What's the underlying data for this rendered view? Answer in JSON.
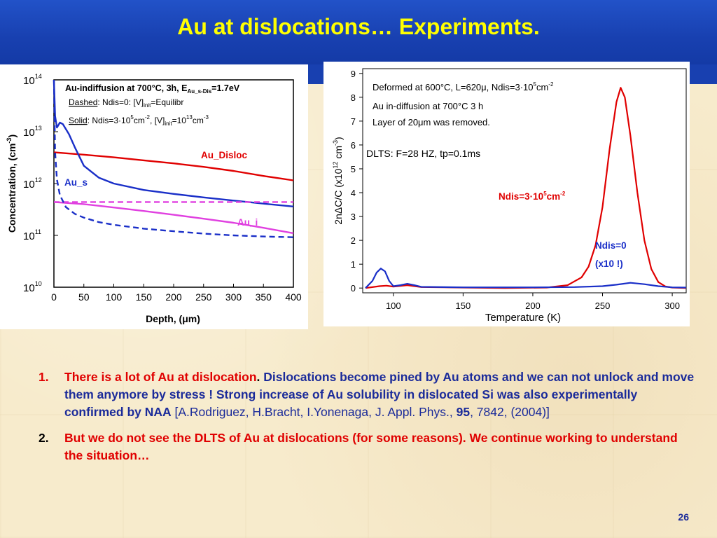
{
  "slide": {
    "title": "Au at dislocations… Experiments.",
    "page_number": "26"
  },
  "left_chart": {
    "annotation_main": "Au-indiffusion at 700°C, 3h, E",
    "annotation_main_sub": "Au_s-Dis",
    "annotation_main_end": "=1.7eV",
    "dashed_label": "Dashed",
    "dashed_text_a": ": Ndis=0: [V]",
    "dashed_sub": "init",
    "dashed_text_b": "=Equilibr",
    "solid_label": "Solid",
    "solid_text_a": ": Ndis=3",
    "solid_dot": "·",
    "solid_text_b": "10",
    "solid_sup1": "5",
    "solid_text_c": "cm",
    "solid_sup2": "-2",
    "solid_text_d": ", [V]",
    "solid_sub": "init",
    "solid_text_e": "=10",
    "solid_sup3": "13",
    "solid_text_f": "cm",
    "solid_sup4": "-3",
    "label_disloc": "Au_Disloc",
    "label_s": "Au_s",
    "label_i": "Au_i",
    "ylabel": "Concentration, (cm",
    "ylabel_sup": "-3",
    "ylabel_end": ")",
    "xlabel_a": "Depth, (",
    "xlabel_mu": "μ",
    "xlabel_b": "m)",
    "xticks": [
      "0",
      "50",
      "100",
      "150",
      "200",
      "250",
      "300",
      "350",
      "400"
    ],
    "ytick_base": "10",
    "ytick_exps": [
      "14",
      "13",
      "12",
      "11",
      "10"
    ]
  },
  "right_chart": {
    "annotation_1": "Deformed at 600°C, L=620μ, Ndis=3·10",
    "annotation_1_sup": "5",
    "annotation_1_end": "cm",
    "annotation_1_sup2": "-2",
    "annotation_2": "Au in-diffusion at 700°C 3 h",
    "annotation_3": "Layer of 20μm was removed.",
    "annotation_4": "DLTS: F=28 HZ, tp=0.1ms",
    "label_ndis_red": "Ndis=3",
    "label_ndis_red_dot": "·",
    "label_ndis_red_b": "10",
    "label_ndis_red_sup": "5",
    "label_ndis_red_c": "cm",
    "label_ndis_red_sup2": "-2",
    "label_ndis0": "Ndis=0",
    "label_x10": "(x10 !)",
    "xlabel": "Temperature (K)",
    "ylabel": "2nΔC/C (x10",
    "ylabel_sup": "12",
    "ylabel_end": " cm",
    "ylabel_sup2": "-3",
    "ylabel_close": ")",
    "xticks": [
      "100",
      "150",
      "200",
      "250",
      "300"
    ],
    "yticks": [
      "0",
      "1",
      "2",
      "3",
      "4",
      "5",
      "6",
      "7",
      "8",
      "9"
    ]
  },
  "notes": {
    "n1_num": "1.",
    "n1_red": "There is a lot of Au at dislocation",
    "n1_dot": ".",
    "n1_blue": " Dislocations become pined by Au atoms and we can not unlock and move them anymore by stress ! Strong increase of Au solubility in dislocated Si was also experimentally confirmed by NAA",
    "n1_ref_a": " [A.Rodriguez,  H.Bracht, I.Yonenaga, J. Appl. Phys., ",
    "n1_ref_b": "95",
    "n1_ref_c": ", 7842, (2004)]",
    "n2_num": "2.",
    "n2_red": "But we do not see the DLTS of Au at dislocations (for some reasons). We continue working to understand the situation…"
  },
  "colors": {
    "header_blue": "#1840b0",
    "title_yellow": "#ffff00",
    "text_blue": "#1b2b9a",
    "red": "#e00000",
    "magenta": "#e040e0",
    "line_blue": "#1a2fc8"
  },
  "chart_data": [
    {
      "type": "line",
      "xlabel": "Depth, (μm)",
      "ylabel": "Concentration, (cm-3)",
      "xlim": [
        0,
        400
      ],
      "ylim": [
        10000000000.0,
        100000000000000.0
      ],
      "y_scale": "log",
      "series": [
        {
          "name": "Au_Disloc",
          "style": "solid",
          "color": "#e00000",
          "x": [
            0,
            50,
            100,
            150,
            200,
            250,
            300,
            350,
            400
          ],
          "y": [
            4000000000000.0,
            3600000000000.0,
            3200000000000.0,
            2800000000000.0,
            2450000000000.0,
            2100000000000.0,
            1750000000000.0,
            1400000000000.0,
            1150000000000.0
          ]
        },
        {
          "name": "Au_s",
          "style": "solid",
          "color": "#1a2fc8",
          "x": [
            0,
            2,
            5,
            10,
            15,
            25,
            35,
            50,
            75,
            100,
            150,
            200,
            250,
            300,
            350,
            400
          ],
          "y": [
            120000000000000.0,
            20000000000000.0,
            12000000000000.0,
            15000000000000.0,
            14000000000000.0,
            9000000000000.0,
            5000000000000.0,
            2200000000000.0,
            1300000000000.0,
            1000000000000.0,
            750000000000.0,
            630000000000.0,
            540000000000.0,
            470000000000.0,
            410000000000.0,
            360000000000.0
          ]
        },
        {
          "name": "Au_i",
          "style": "solid",
          "color": "#e040e0",
          "x": [
            0,
            50,
            100,
            150,
            200,
            250,
            300,
            350,
            400
          ],
          "y": [
            440000000000.0,
            400000000000.0,
            345000000000.0,
            295000000000.0,
            250000000000.0,
            210000000000.0,
            175000000000.0,
            140000000000.0,
            110000000000.0
          ]
        },
        {
          "style": "dashed",
          "color": "#e040e0",
          "x": [
            0,
            50,
            100,
            150,
            200,
            250,
            300,
            350,
            400
          ],
          "y": [
            440000000000.0,
            440000000000.0,
            440000000000.0,
            440000000000.0,
            440000000000.0,
            440000000000.0,
            440000000000.0,
            440000000000.0,
            440000000000.0
          ]
        },
        {
          "style": "dashed",
          "color": "#1a2fc8",
          "x": [
            0,
            2,
            5,
            10,
            20,
            35,
            50,
            75,
            100,
            150,
            200,
            250,
            300,
            350,
            400
          ],
          "y": [
            120000000000000.0,
            4000000000000.0,
            1200000000000.0,
            600000000000.0,
            350000000000.0,
            260000000000.0,
            220000000000.0,
            180000000000.0,
            160000000000.0,
            135000000000.0,
            120000000000.0,
            108000000000.0,
            100000000000.0,
            95000000000.0,
            92000000000.0
          ]
        }
      ]
    },
    {
      "type": "line",
      "xlabel": "Temperature (K)",
      "ylabel": "2nΔC/C (x10^12 cm^-3)",
      "xlim": [
        78,
        310
      ],
      "ylim": [
        -0.2,
        9.2
      ],
      "series": [
        {
          "name": "Ndis=3·10^5cm^-2",
          "color": "#e00000",
          "x": [
            80,
            90,
            95,
            100,
            110,
            120,
            150,
            180,
            210,
            225,
            235,
            240,
            245,
            250,
            255,
            260,
            263,
            266,
            270,
            275,
            280,
            285,
            290,
            295,
            300,
            310
          ],
          "y": [
            0.0,
            0.08,
            0.1,
            0.06,
            0.12,
            0.04,
            0.02,
            0.0,
            0.02,
            0.12,
            0.45,
            0.9,
            1.8,
            3.4,
            5.8,
            7.8,
            8.4,
            8.0,
            6.4,
            4.0,
            2.0,
            0.8,
            0.25,
            0.07,
            0.02,
            0.0
          ]
        },
        {
          "name": "Ndis=0 (x10 !)",
          "color": "#1a2fc8",
          "x": [
            80,
            85,
            88,
            91,
            94,
            97,
            100,
            105,
            110,
            115,
            120,
            150,
            200,
            230,
            250,
            260,
            270,
            280,
            290,
            300,
            310
          ],
          "y": [
            0.0,
            0.3,
            0.65,
            0.82,
            0.7,
            0.3,
            0.08,
            0.12,
            0.18,
            0.12,
            0.05,
            0.03,
            0.03,
            0.04,
            0.08,
            0.14,
            0.22,
            0.16,
            0.08,
            0.03,
            0.02
          ]
        }
      ]
    }
  ]
}
